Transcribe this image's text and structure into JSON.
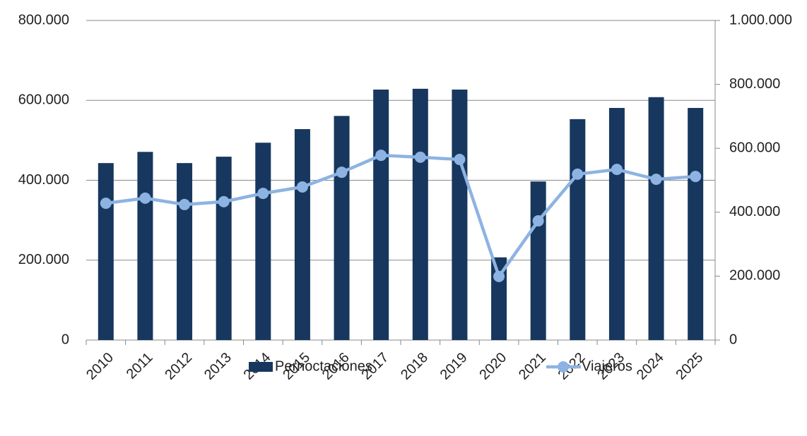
{
  "chart_data": {
    "type": "bar-line",
    "categories": [
      "2010",
      "2011",
      "2012",
      "2013",
      "2014",
      "2015",
      "2016",
      "2017",
      "2018",
      "2019",
      "2020",
      "2021",
      "2022",
      "2023",
      "2024",
      "2025"
    ],
    "series": [
      {
        "name": "Pernoctaciones",
        "type": "bar",
        "color": "#17375e",
        "axis": "y",
        "values": [
          443000,
          471000,
          443000,
          459000,
          494000,
          528000,
          561000,
          627000,
          629000,
          627000,
          207000,
          397000,
          553000,
          581000,
          608000,
          581000
        ]
      },
      {
        "name": "Viajeros",
        "type": "line",
        "color": "#8db3e2",
        "axis": "y2",
        "values": [
          428000,
          444000,
          424000,
          433000,
          459000,
          479000,
          525000,
          578000,
          572000,
          565000,
          199000,
          373000,
          519000,
          534000,
          503000,
          512000
        ]
      }
    ],
    "ylim": [
      0,
      800000
    ],
    "yticks": [
      0,
      {
        "value": 200000,
        "label": "200.000"
      },
      {
        "value": 400000,
        "label": "400.000"
      },
      {
        "value": 600000,
        "label": "600.000"
      },
      {
        "value": 800000,
        "label": "800.000"
      }
    ],
    "y2lim": [
      0,
      1000000
    ],
    "y2ticks": [
      0,
      {
        "value": 200000,
        "label": "200.000"
      },
      {
        "value": 400000,
        "label": "400.000"
      },
      {
        "value": 600000,
        "label": "600.000"
      },
      {
        "value": 800000,
        "label": "800.000"
      },
      {
        "value": 1000000,
        "label": "1.000.000"
      }
    ],
    "grid": true,
    "legend": "bottom"
  }
}
